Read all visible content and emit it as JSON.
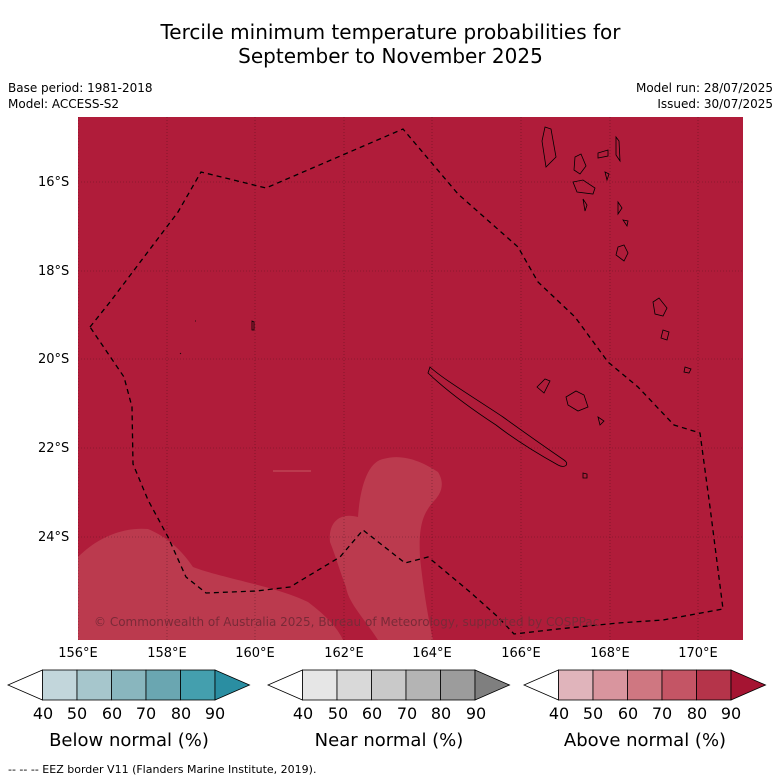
{
  "title_line1": "Tercile minimum temperature probabilities for",
  "title_line2": "September to November 2025",
  "meta_left": [
    "Base period: 1981-2018",
    "Model: ACCESS-S2"
  ],
  "meta_right": [
    "Model run: 28/07/2025",
    "Issued: 30/07/2025"
  ],
  "map": {
    "lat_labels": [
      "16°S",
      "18°S",
      "20°S",
      "22°S",
      "24°S"
    ],
    "lon_labels": [
      "156°E",
      "158°E",
      "160°E",
      "162°E",
      "164°E",
      "166°E",
      "168°E",
      "170°E"
    ],
    "background_color": "#b01c3a",
    "lighter_region_color": "#bb3a4e",
    "grid": true,
    "copyright": "© Commonwealth of Australia 2025, Bureau of Meteorology, supported by COSPPac"
  },
  "colorbars": [
    {
      "title": "Below normal (%)",
      "ticks": [
        "40",
        "50",
        "60",
        "70",
        "80",
        "90"
      ],
      "colors": [
        "#ffffff",
        "#c2d6db",
        "#a6c6cc",
        "#89b6be",
        "#6aa6b1",
        "#449fae",
        "#2a8ea2"
      ]
    },
    {
      "title": "Near normal (%)",
      "ticks": [
        "40",
        "50",
        "60",
        "70",
        "80",
        "90"
      ],
      "colors": [
        "#ffffff",
        "#e6e6e6",
        "#d9d9d9",
        "#c9c9c9",
        "#b4b4b4",
        "#9c9c9c",
        "#7f7f7f"
      ]
    },
    {
      "title": "Above normal (%)",
      "ticks": [
        "40",
        "50",
        "60",
        "70",
        "80",
        "90"
      ],
      "colors": [
        "#ffffff",
        "#e0b4bb",
        "#d9959e",
        "#cf7781",
        "#c45565",
        "#b5344a",
        "#a51432"
      ]
    }
  ],
  "footer": "-- -- -- EEZ border V11 (Flanders Marine Institute, 2019)."
}
